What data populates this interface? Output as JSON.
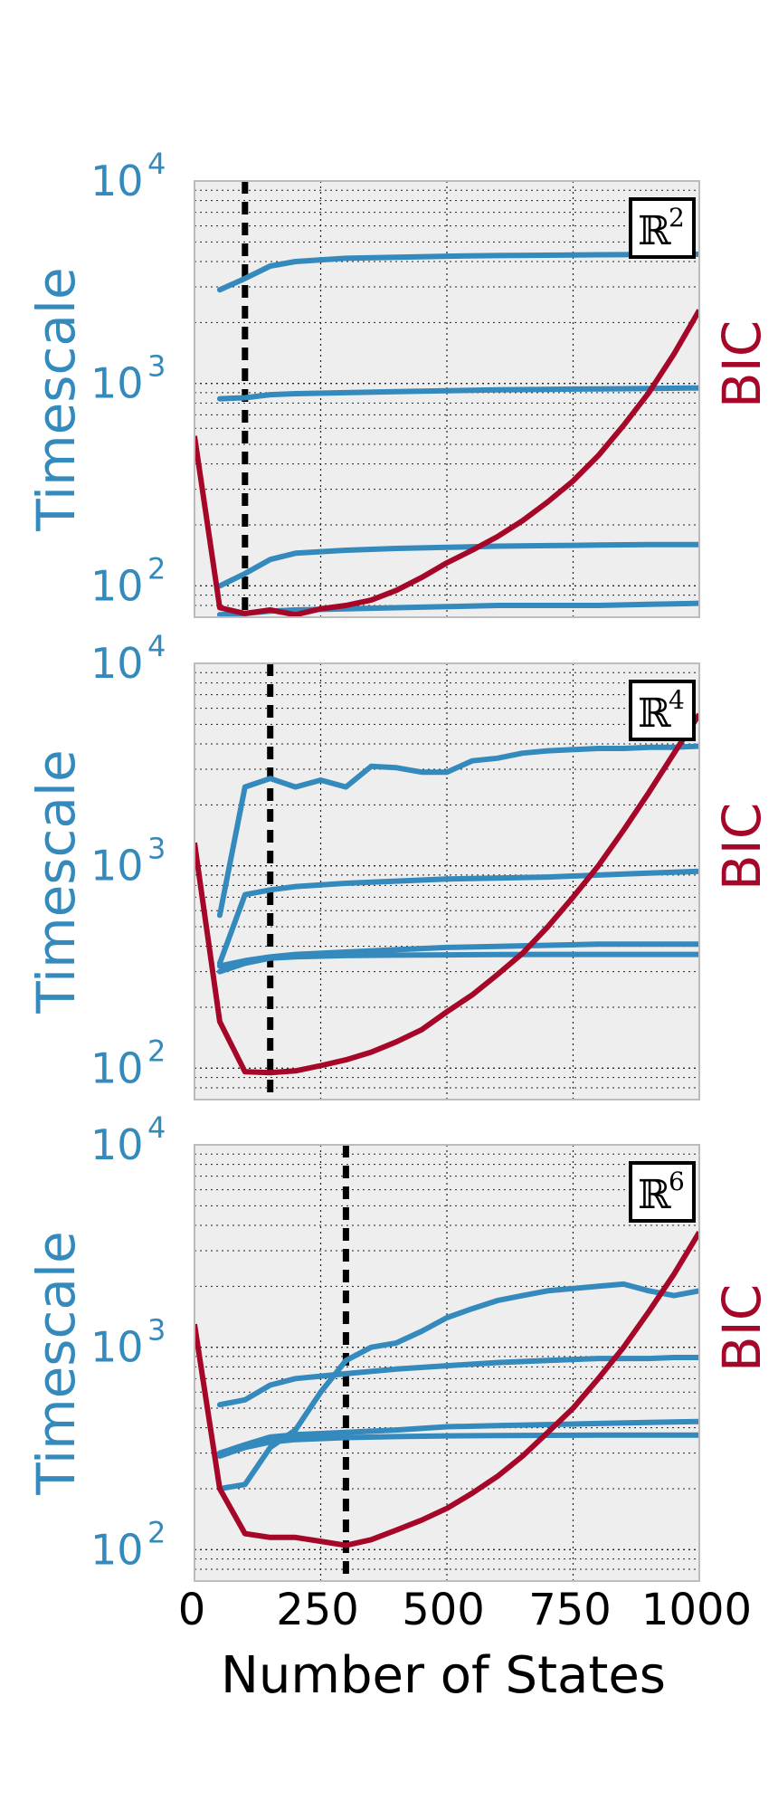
{
  "colors": {
    "timescale": "#348abd",
    "bic": "#a60628",
    "panel_bg": "#eeeeee",
    "panel_border": "#bcbcbc",
    "grid": "#222222",
    "marker_line": "#000000"
  },
  "figure": {
    "xlabel": "Number of States",
    "x_ticks": [
      "0",
      "250",
      "500",
      "750",
      "1000"
    ],
    "y_left_label": "Timescale",
    "y_right_label": "BIC",
    "y_tick_bases": [
      "10",
      "10",
      "10"
    ],
    "y_tick_exponents": [
      "2",
      "3",
      "4"
    ]
  },
  "chart_data": [
    {
      "type": "line",
      "panel_label": "ℝ",
      "panel_label_exponent": "2",
      "xlim": [
        0,
        1000
      ],
      "ylim": [
        70,
        10000
      ],
      "y_scale": "log",
      "grid": true,
      "selected_states": 100,
      "timescale_series": [
        {
          "x": [
            50,
            100,
            150,
            200,
            300,
            400,
            500,
            600,
            700,
            800,
            900,
            1000
          ],
          "values": [
            2900,
            3300,
            3800,
            4000,
            4150,
            4200,
            4250,
            4280,
            4300,
            4320,
            4330,
            4350
          ]
        },
        {
          "x": [
            50,
            100,
            150,
            200,
            300,
            400,
            500,
            600,
            700,
            800,
            900,
            1000
          ],
          "values": [
            840,
            850,
            880,
            890,
            900,
            910,
            920,
            930,
            935,
            940,
            945,
            950
          ]
        },
        {
          "x": [
            50,
            100,
            150,
            200,
            300,
            400,
            500,
            600,
            700,
            800,
            900,
            1000
          ],
          "values": [
            100,
            115,
            135,
            145,
            150,
            153,
            155,
            157,
            158,
            159,
            160,
            160
          ]
        },
        {
          "x": [
            50,
            100,
            150,
            200,
            300,
            400,
            500,
            600,
            700,
            800,
            900,
            1000
          ],
          "values": [
            72,
            73,
            75,
            76,
            77,
            78,
            79,
            80,
            80,
            80,
            81,
            82
          ]
        }
      ],
      "bic": {
        "x": [
          0,
          50,
          100,
          150,
          200,
          250,
          300,
          350,
          400,
          450,
          500,
          550,
          600,
          650,
          700,
          750,
          800,
          850,
          900,
          950,
          1000
        ],
        "values": [
          550,
          78,
          73,
          76,
          72,
          77,
          80,
          85,
          95,
          110,
          130,
          150,
          175,
          210,
          260,
          330,
          440,
          620,
          900,
          1400,
          2300
        ]
      }
    },
    {
      "type": "line",
      "panel_label": "ℝ",
      "panel_label_exponent": "4",
      "xlim": [
        0,
        1000
      ],
      "ylim": [
        70,
        10000
      ],
      "y_scale": "log",
      "grid": true,
      "selected_states": 150,
      "timescale_series": [
        {
          "x": [
            50,
            100,
            150,
            200,
            250,
            300,
            350,
            400,
            450,
            500,
            550,
            600,
            650,
            700,
            750,
            800,
            850,
            900,
            950,
            1000
          ],
          "values": [
            570,
            2450,
            2700,
            2450,
            2650,
            2450,
            3100,
            3050,
            2900,
            2900,
            3300,
            3400,
            3600,
            3700,
            3750,
            3800,
            3800,
            3850,
            3850,
            3900
          ]
        },
        {
          "x": [
            50,
            100,
            150,
            200,
            300,
            400,
            500,
            600,
            700,
            800,
            900,
            1000
          ],
          "values": [
            330,
            720,
            760,
            790,
            820,
            840,
            860,
            870,
            880,
            900,
            920,
            940
          ]
        },
        {
          "x": [
            50,
            100,
            150,
            200,
            300,
            400,
            500,
            600,
            700,
            800,
            900,
            1000
          ],
          "values": [
            320,
            340,
            355,
            365,
            375,
            385,
            395,
            400,
            405,
            410,
            410,
            410
          ]
        },
        {
          "x": [
            50,
            100,
            150,
            200,
            300,
            400,
            500,
            600,
            700,
            800,
            900,
            1000
          ],
          "values": [
            300,
            330,
            350,
            355,
            360,
            362,
            363,
            364,
            365,
            365,
            365,
            365
          ]
        }
      ],
      "bic": {
        "x": [
          0,
          50,
          100,
          150,
          200,
          250,
          300,
          350,
          400,
          450,
          500,
          550,
          600,
          650,
          700,
          750,
          800,
          850,
          900,
          950,
          1000
        ],
        "values": [
          1300,
          170,
          96,
          95,
          97,
          103,
          110,
          120,
          135,
          155,
          190,
          230,
          290,
          370,
          500,
          700,
          1000,
          1500,
          2300,
          3600,
          5600
        ]
      }
    },
    {
      "type": "line",
      "panel_label": "ℝ",
      "panel_label_exponent": "6",
      "xlim": [
        0,
        1000
      ],
      "ylim": [
        70,
        10000
      ],
      "y_scale": "log",
      "grid": true,
      "selected_states": 300,
      "timescale_series": [
        {
          "x": [
            50,
            100,
            150,
            200,
            250,
            300,
            350,
            400,
            450,
            500,
            550,
            600,
            650,
            700,
            750,
            800,
            850,
            900,
            950,
            1000
          ],
          "values": [
            200,
            210,
            320,
            390,
            600,
            860,
            1000,
            1050,
            1200,
            1400,
            1550,
            1700,
            1800,
            1900,
            1950,
            2000,
            2050,
            1900,
            1800,
            1900
          ]
        },
        {
          "x": [
            50,
            100,
            150,
            200,
            250,
            300,
            400,
            500,
            600,
            700,
            800,
            900,
            950,
            1000
          ],
          "values": [
            520,
            550,
            650,
            700,
            720,
            740,
            780,
            810,
            840,
            860,
            880,
            880,
            890,
            890
          ]
        },
        {
          "x": [
            50,
            100,
            150,
            200,
            300,
            400,
            500,
            600,
            700,
            800,
            900,
            1000
          ],
          "values": [
            300,
            330,
            360,
            370,
            380,
            390,
            405,
            410,
            415,
            420,
            425,
            430
          ]
        },
        {
          "x": [
            50,
            100,
            150,
            200,
            300,
            400,
            500,
            600,
            700,
            800,
            900,
            1000
          ],
          "values": [
            290,
            320,
            340,
            350,
            358,
            362,
            365,
            366,
            367,
            368,
            368,
            368
          ]
        }
      ],
      "bic": {
        "x": [
          0,
          50,
          100,
          150,
          200,
          250,
          300,
          350,
          400,
          450,
          500,
          550,
          600,
          650,
          700,
          750,
          800,
          850,
          900,
          950,
          1000
        ],
        "values": [
          1300,
          200,
          120,
          115,
          115,
          110,
          105,
          112,
          125,
          140,
          160,
          190,
          230,
          290,
          380,
          500,
          700,
          1000,
          1500,
          2300,
          3700
        ]
      }
    }
  ]
}
